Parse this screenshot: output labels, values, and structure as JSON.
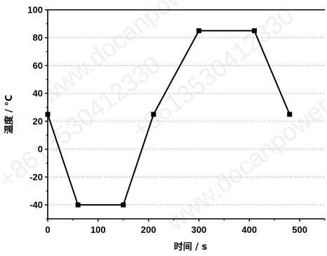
{
  "chart_data": {
    "type": "line",
    "title": "",
    "xlabel": "时间 / s",
    "ylabel": "温度 / °C",
    "xlim": [
      0,
      550
    ],
    "ylim": [
      -50,
      100
    ],
    "x_ticks": [
      0,
      100,
      200,
      300,
      400,
      500
    ],
    "y_ticks": [
      -40,
      -20,
      0,
      20,
      40,
      60,
      80,
      100
    ],
    "grid": "horizontal dotted",
    "legend": "none",
    "series": [
      {
        "x": [
          0,
          60,
          150,
          210,
          300,
          410,
          480
        ],
        "y": [
          25,
          -40,
          -40,
          25,
          85,
          85,
          25
        ],
        "color": "#000000",
        "marker": "square"
      }
    ]
  },
  "watermark": {
    "texts": [
      "www.docanpower.cn",
      "+8613530412330",
      "www.docanpower.cn",
      "+8613530412330"
    ],
    "color": "#c9d2e6"
  }
}
